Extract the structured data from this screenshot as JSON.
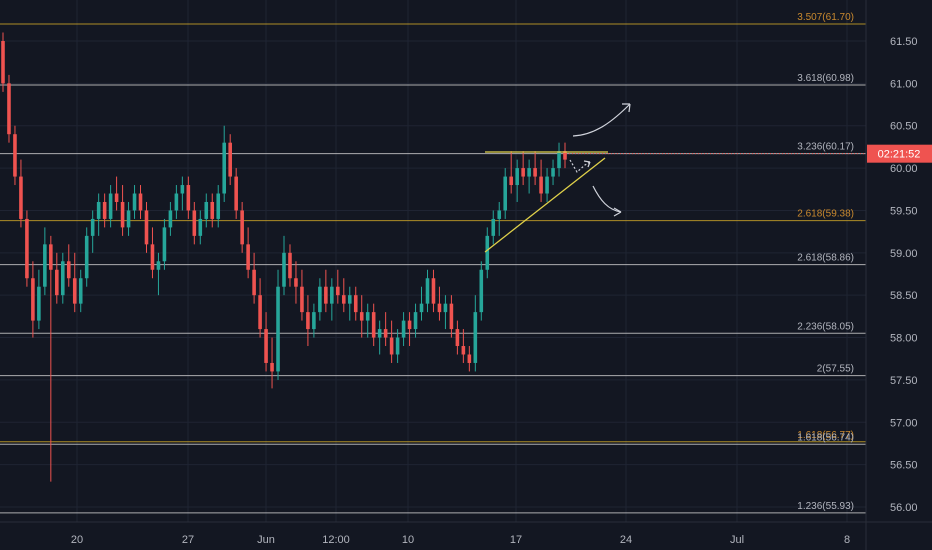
{
  "chart_data": {
    "type": "candlestick",
    "title": "",
    "xlabel": "",
    "ylabel": "",
    "ylim": [
      55.85,
      62.2
    ],
    "grid": true,
    "x_ticks": [
      "20",
      "27",
      "Jun",
      "12:00",
      "10",
      "17",
      "24",
      "Jul",
      "8"
    ],
    "y_ticks": [
      "61.50",
      "61.00",
      "60.50",
      "60.00",
      "59.50",
      "59.00",
      "58.50",
      "58.00",
      "57.50",
      "57.00",
      "56.50",
      "56.00"
    ],
    "current_price_label": "02:21:52",
    "current_price": 60.17,
    "fib_levels": [
      {
        "label": "3.507(61.70)",
        "price": 61.7,
        "color": "#c9a227"
      },
      {
        "label": "3.618(60.98)",
        "price": 60.98,
        "color": "#c8c8c8"
      },
      {
        "label": "3.236(60.17)",
        "price": 60.17,
        "color": "#c8c8c8"
      },
      {
        "label": "2.618(59.38)",
        "price": 59.38,
        "color": "#c9a227"
      },
      {
        "label": "2.618(58.86)",
        "price": 58.86,
        "color": "#c8c8c8"
      },
      {
        "label": "2.236(58.05)",
        "price": 58.05,
        "color": "#c8c8c8"
      },
      {
        "label": "2(57.55)",
        "price": 57.55,
        "color": "#c8c8c8"
      },
      {
        "label": "1.618(56.77)",
        "price": 56.77,
        "color": "#c9a227"
      },
      {
        "label": "1.618(56.74)",
        "price": 56.74,
        "color": "#c8c8c8"
      },
      {
        "label": "1.236(55.93)",
        "price": 55.93,
        "color": "#c8c8c8"
      }
    ],
    "series": [
      {
        "name": "",
        "ohlc": [
          [
            61.5,
            61.6,
            60.9,
            61.0
          ],
          [
            61.0,
            61.1,
            60.3,
            60.4
          ],
          [
            60.4,
            60.5,
            59.8,
            59.9
          ],
          [
            59.9,
            60.1,
            59.3,
            59.4
          ],
          [
            59.4,
            59.5,
            58.6,
            58.7
          ],
          [
            58.7,
            58.9,
            58.0,
            58.2
          ],
          [
            58.2,
            58.8,
            58.1,
            58.6
          ],
          [
            58.6,
            59.3,
            58.5,
            59.1
          ],
          [
            59.1,
            59.2,
            56.3,
            58.8
          ],
          [
            58.8,
            59.0,
            58.4,
            58.5
          ],
          [
            58.5,
            59.0,
            58.4,
            58.9
          ],
          [
            58.9,
            59.1,
            58.6,
            58.7
          ],
          [
            58.7,
            59.0,
            58.3,
            58.4
          ],
          [
            58.4,
            58.8,
            58.3,
            58.7
          ],
          [
            58.7,
            59.3,
            58.6,
            59.2
          ],
          [
            59.2,
            59.5,
            59.0,
            59.4
          ],
          [
            59.4,
            59.7,
            59.2,
            59.6
          ],
          [
            59.6,
            59.7,
            59.3,
            59.4
          ],
          [
            59.4,
            59.8,
            59.3,
            59.7
          ],
          [
            59.7,
            59.9,
            59.5,
            59.6
          ],
          [
            59.6,
            59.8,
            59.2,
            59.3
          ],
          [
            59.3,
            59.6,
            59.2,
            59.5
          ],
          [
            59.5,
            59.8,
            59.4,
            59.7
          ],
          [
            59.7,
            59.8,
            59.4,
            59.5
          ],
          [
            59.5,
            59.6,
            59.0,
            59.1
          ],
          [
            59.1,
            59.3,
            58.7,
            58.8
          ],
          [
            58.8,
            59.0,
            58.5,
            58.9
          ],
          [
            58.9,
            59.4,
            58.8,
            59.3
          ],
          [
            59.3,
            59.6,
            59.2,
            59.5
          ],
          [
            59.5,
            59.8,
            59.4,
            59.7
          ],
          [
            59.7,
            59.9,
            59.5,
            59.8
          ],
          [
            59.8,
            59.9,
            59.4,
            59.5
          ],
          [
            59.5,
            59.6,
            59.1,
            59.2
          ],
          [
            59.2,
            59.5,
            59.1,
            59.4
          ],
          [
            59.4,
            59.7,
            59.3,
            59.6
          ],
          [
            59.6,
            59.7,
            59.3,
            59.4
          ],
          [
            59.4,
            59.8,
            59.3,
            59.7
          ],
          [
            59.7,
            60.5,
            59.6,
            60.3
          ],
          [
            60.3,
            60.4,
            59.8,
            59.9
          ],
          [
            59.9,
            60.0,
            59.4,
            59.5
          ],
          [
            59.5,
            59.6,
            59.0,
            59.1
          ],
          [
            59.1,
            59.3,
            58.7,
            58.8
          ],
          [
            58.8,
            59.0,
            58.4,
            58.5
          ],
          [
            58.5,
            58.7,
            58.0,
            58.1
          ],
          [
            58.1,
            58.3,
            57.6,
            57.7
          ],
          [
            57.7,
            58.0,
            57.4,
            57.6
          ],
          [
            57.6,
            58.8,
            57.5,
            58.6
          ],
          [
            58.6,
            59.2,
            58.5,
            59.0
          ],
          [
            59.0,
            59.1,
            58.6,
            58.7
          ],
          [
            58.7,
            58.9,
            58.4,
            58.6
          ],
          [
            58.6,
            58.8,
            58.2,
            58.3
          ],
          [
            58.3,
            58.5,
            57.9,
            58.1
          ],
          [
            58.1,
            58.4,
            58.0,
            58.3
          ],
          [
            58.3,
            58.7,
            58.2,
            58.6
          ],
          [
            58.6,
            58.8,
            58.3,
            58.4
          ],
          [
            58.4,
            58.7,
            58.2,
            58.6
          ],
          [
            58.6,
            58.8,
            58.4,
            58.5
          ],
          [
            58.5,
            58.7,
            58.3,
            58.4
          ],
          [
            58.4,
            58.6,
            58.2,
            58.5
          ],
          [
            58.5,
            58.6,
            58.2,
            58.3
          ],
          [
            58.3,
            58.5,
            58.0,
            58.2
          ],
          [
            58.2,
            58.4,
            58.0,
            58.3
          ],
          [
            58.3,
            58.4,
            57.9,
            58.0
          ],
          [
            58.0,
            58.2,
            57.8,
            58.1
          ],
          [
            58.1,
            58.3,
            57.9,
            58.0
          ],
          [
            58.0,
            58.2,
            57.7,
            57.8
          ],
          [
            57.8,
            58.1,
            57.7,
            58.0
          ],
          [
            58.0,
            58.3,
            57.9,
            58.2
          ],
          [
            58.2,
            58.3,
            57.9,
            58.1
          ],
          [
            58.1,
            58.4,
            58.0,
            58.3
          ],
          [
            58.3,
            58.6,
            58.2,
            58.4
          ],
          [
            58.4,
            58.8,
            58.3,
            58.7
          ],
          [
            58.7,
            58.8,
            58.3,
            58.4
          ],
          [
            58.4,
            58.6,
            58.2,
            58.3
          ],
          [
            58.3,
            58.5,
            58.1,
            58.4
          ],
          [
            58.4,
            58.5,
            58.0,
            58.1
          ],
          [
            58.1,
            58.2,
            57.8,
            57.9
          ],
          [
            57.9,
            58.1,
            57.7,
            57.8
          ],
          [
            57.8,
            57.9,
            57.6,
            57.7
          ],
          [
            57.7,
            58.5,
            57.6,
            58.3
          ],
          [
            58.3,
            58.9,
            58.2,
            58.8
          ],
          [
            58.8,
            59.3,
            58.7,
            59.2
          ],
          [
            59.2,
            59.5,
            59.1,
            59.4
          ],
          [
            59.4,
            59.6,
            59.2,
            59.5
          ],
          [
            59.5,
            60.0,
            59.4,
            59.9
          ],
          [
            59.9,
            60.2,
            59.7,
            59.8
          ],
          [
            59.8,
            60.1,
            59.6,
            60.0
          ],
          [
            60.0,
            60.2,
            59.8,
            59.9
          ],
          [
            59.9,
            60.1,
            59.7,
            60.0
          ],
          [
            60.0,
            60.2,
            59.8,
            59.9
          ],
          [
            59.9,
            60.1,
            59.6,
            59.7
          ],
          [
            59.7,
            60.0,
            59.6,
            59.9
          ],
          [
            59.9,
            60.1,
            59.8,
            60.0
          ],
          [
            60.0,
            60.3,
            59.9,
            60.2
          ],
          [
            60.2,
            60.3,
            60.0,
            60.1
          ]
        ]
      }
    ]
  }
}
